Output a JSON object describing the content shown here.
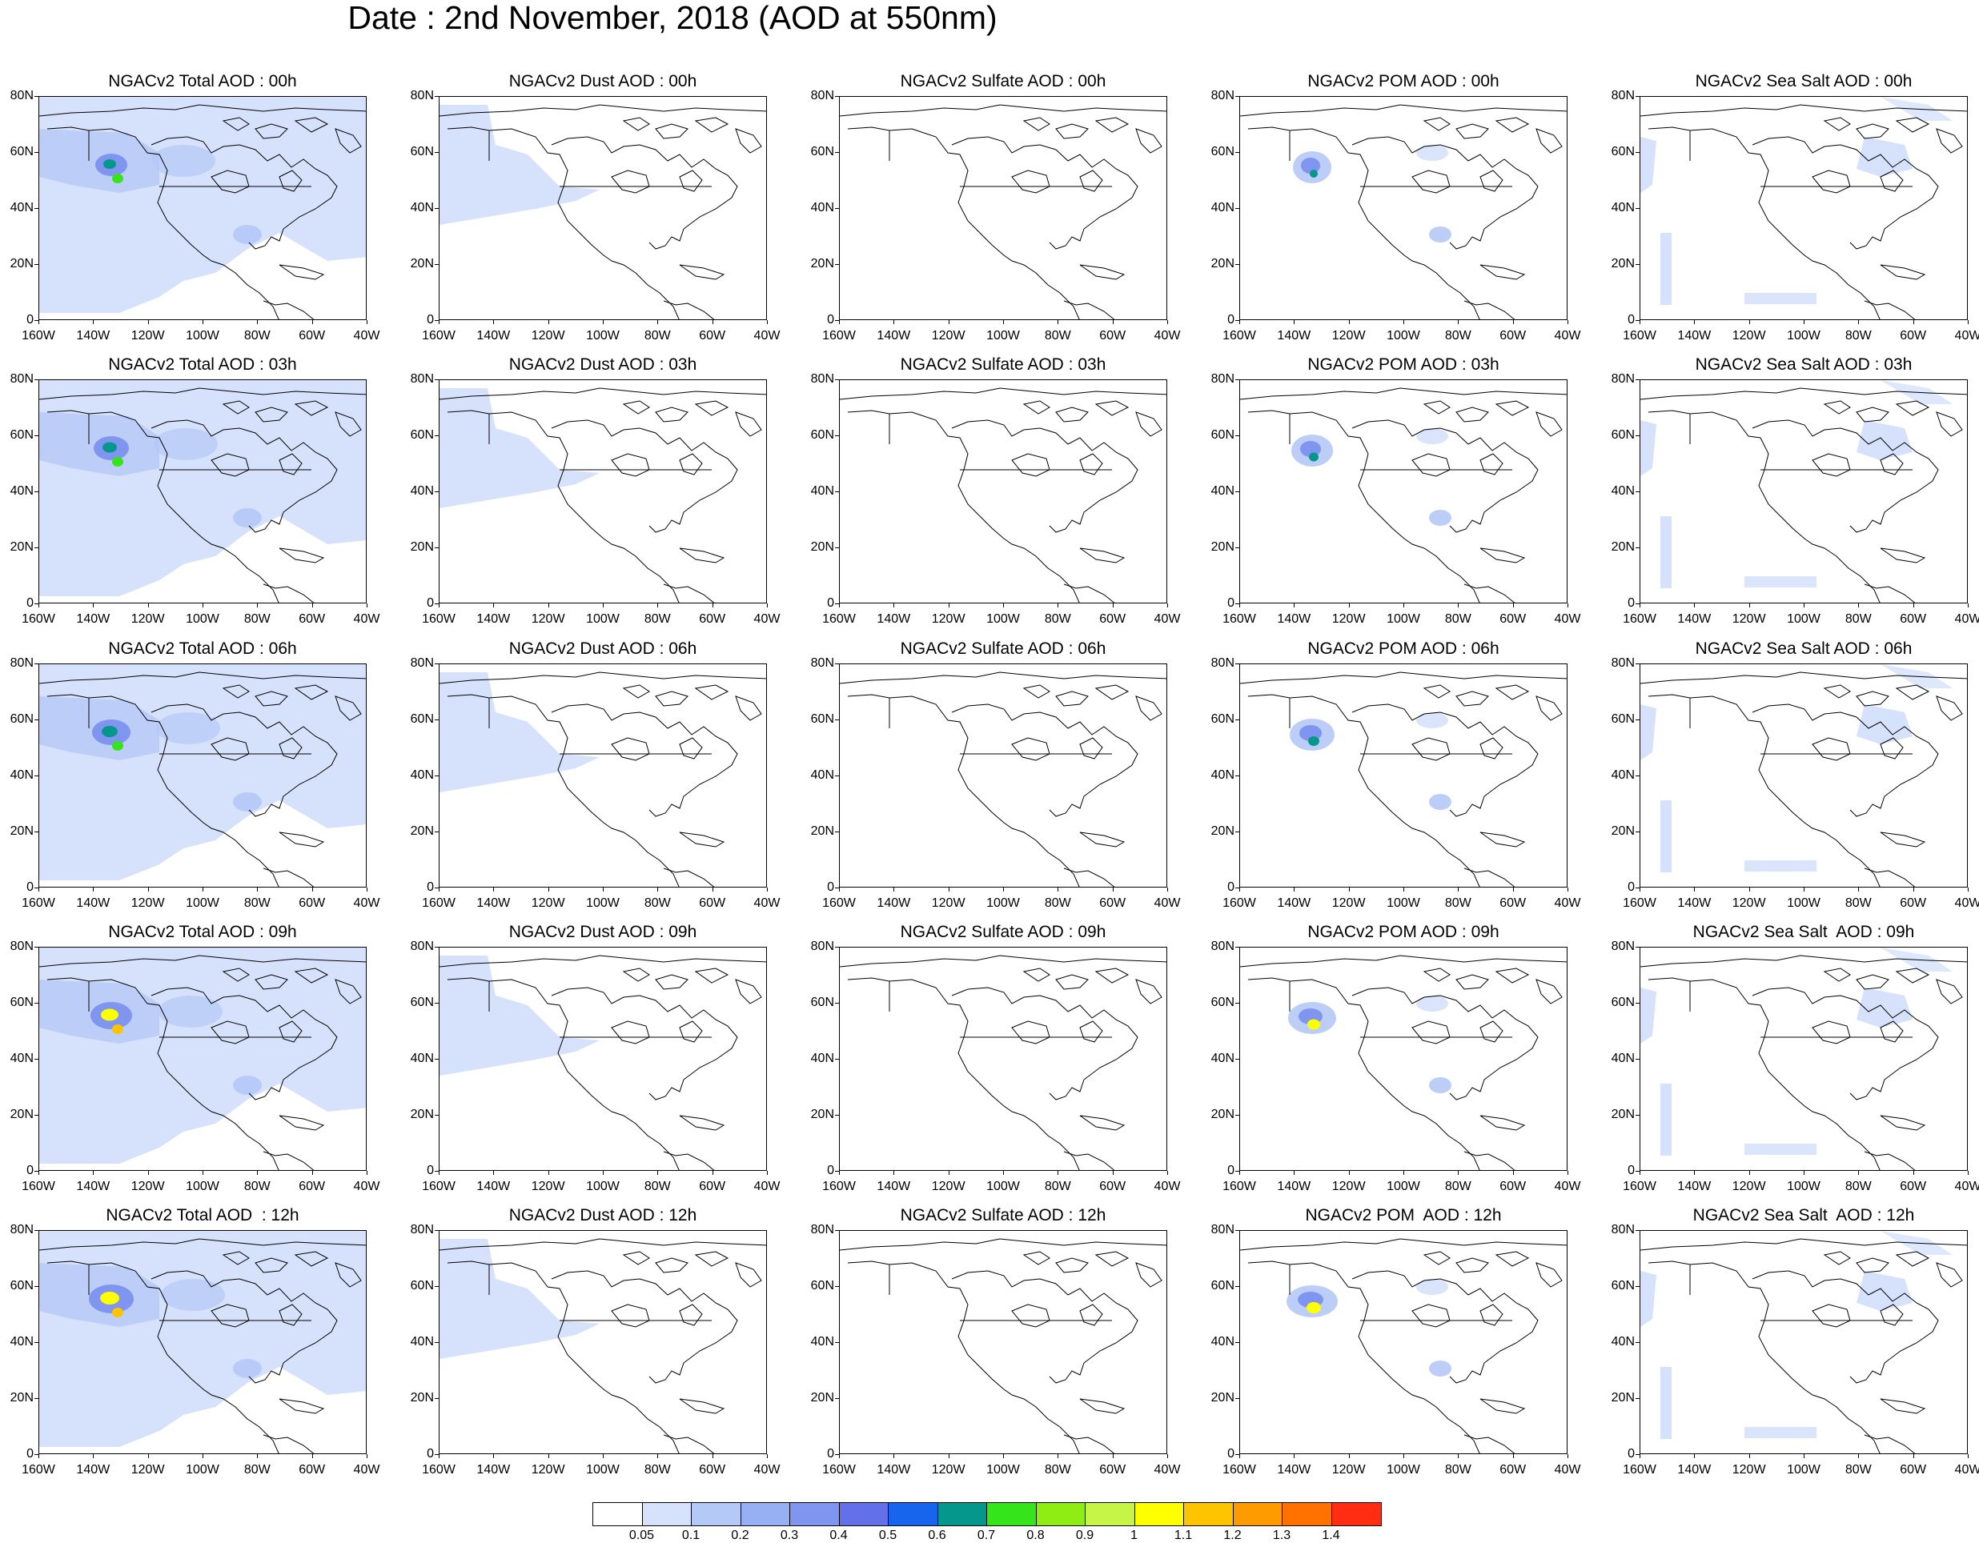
{
  "title": "Date : 2nd November, 2018 (AOD at 550nm)",
  "panel_titles": [
    [
      "NGACv2 Total AOD : 00h",
      "NGACv2 Dust AOD : 00h",
      "NGACv2 Sulfate AOD : 00h",
      "NGACv2 POM AOD : 00h",
      "NGACv2 Sea Salt AOD : 00h"
    ],
    [
      "NGACv2 Total AOD : 03h",
      "NGACv2 Dust AOD : 03h",
      "NGACv2 Sulfate AOD : 03h",
      "NGACv2 POM AOD : 03h",
      "NGACv2 Sea Salt AOD : 03h"
    ],
    [
      "NGACv2 Total AOD : 06h",
      "NGACv2 Dust AOD : 06h",
      "NGACv2 Sulfate AOD : 06h",
      "NGACv2 POM AOD : 06h",
      "NGACv2 Sea Salt AOD : 06h"
    ],
    [
      "NGACv2 Total AOD : 09h",
      "NGACv2 Dust AOD : 09h",
      "NGACv2 Sulfate AOD : 09h",
      "NGACv2 POM AOD : 09h",
      "NGACv2 Sea Salt  AOD : 09h"
    ],
    [
      "NGACv2 Total AOD  : 12h",
      "NGACv2 Dust AOD : 12h",
      "NGACv2 Sulfate AOD : 12h",
      "NGACv2 POM  AOD : 12h",
      "NGACv2 Sea Salt  AOD : 12h"
    ]
  ],
  "y_tick_labels": [
    "80N",
    "60N",
    "40N",
    "20N",
    "0"
  ],
  "x_tick_labels": [
    "160W",
    "140W",
    "120W",
    "100W",
    "80W",
    "60W",
    "40W"
  ],
  "colorbar": {
    "labels": [
      "0.05",
      "0.1",
      "0.2",
      "0.3",
      "0.4",
      "0.5",
      "0.6",
      "0.7",
      "0.8",
      "0.9",
      "1",
      "1.1",
      "1.2",
      "1.3",
      "1.4"
    ],
    "colors": [
      "#ffffff",
      "#d6e2fb",
      "#b5c9f7",
      "#97b0f4",
      "#7f95ef",
      "#6470ea",
      "#1764ef",
      "#05968c",
      "#35e41b",
      "#90ed14",
      "#c6f547",
      "#ffff00",
      "#ffc400",
      "#ff9a00",
      "#ff7200",
      "#ff2d12"
    ]
  }
}
